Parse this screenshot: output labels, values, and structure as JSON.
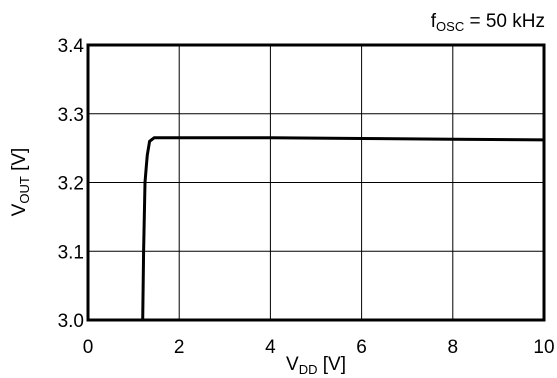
{
  "chart_data": {
    "type": "line",
    "annotation": {
      "main": "f",
      "sub": "OSC",
      "rest": " = 50 kHz"
    },
    "xlabel": {
      "main": "V",
      "sub": "DD",
      "rest": " [V]"
    },
    "ylabel": {
      "main": "V",
      "sub": "OUT",
      "rest": " [V]"
    },
    "xlim": [
      0,
      10
    ],
    "ylim": [
      3.0,
      3.4
    ],
    "xticks": [
      0,
      2,
      4,
      6,
      8,
      10
    ],
    "yticks": [
      3.0,
      3.1,
      3.2,
      3.3,
      3.4
    ],
    "ytick_labels": [
      "3.0",
      "3.1",
      "3.2",
      "3.3",
      "3.4"
    ],
    "grid": true,
    "series": [
      {
        "x": [
          1.2,
          1.22,
          1.25,
          1.28,
          1.3,
          1.35,
          1.45,
          2.0,
          4.0,
          6.0,
          8.0,
          10.0
        ],
        "y": [
          3.0,
          3.1,
          3.2,
          3.225,
          3.24,
          3.26,
          3.265,
          3.265,
          3.265,
          3.264,
          3.263,
          3.262
        ]
      }
    ]
  }
}
